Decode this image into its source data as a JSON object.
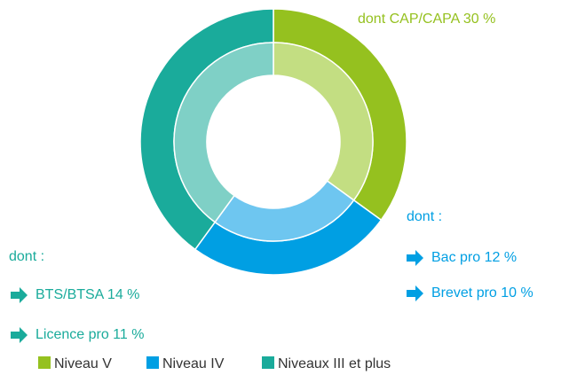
{
  "chart_data": {
    "type": "donut",
    "categories": [
      "Niveau V",
      "Niveau IV",
      "Niveaux III et plus"
    ],
    "values": [
      35,
      25,
      40
    ],
    "colors": [
      "#95c11f",
      "#009fe3",
      "#1aab9b"
    ],
    "inner_colors": [
      "#c3de82",
      "#6ec6f0",
      "#7fd0c6"
    ],
    "annotations": [
      {
        "text": "dont CAP/CAPA 30 %",
        "color": "#95c11f"
      },
      {
        "text": "dont :",
        "color": "#009fe3"
      },
      {
        "text": "Bac pro 12 %",
        "color": "#009fe3"
      },
      {
        "text": "Brevet pro 10 %",
        "color": "#009fe3"
      },
      {
        "text": "dont :",
        "color": "#1aab9b"
      },
      {
        "text": "BTS/BTSA 14 %",
        "color": "#1aab9b"
      },
      {
        "text": "Licence pro 11 %",
        "color": "#1aab9b"
      }
    ]
  }
}
